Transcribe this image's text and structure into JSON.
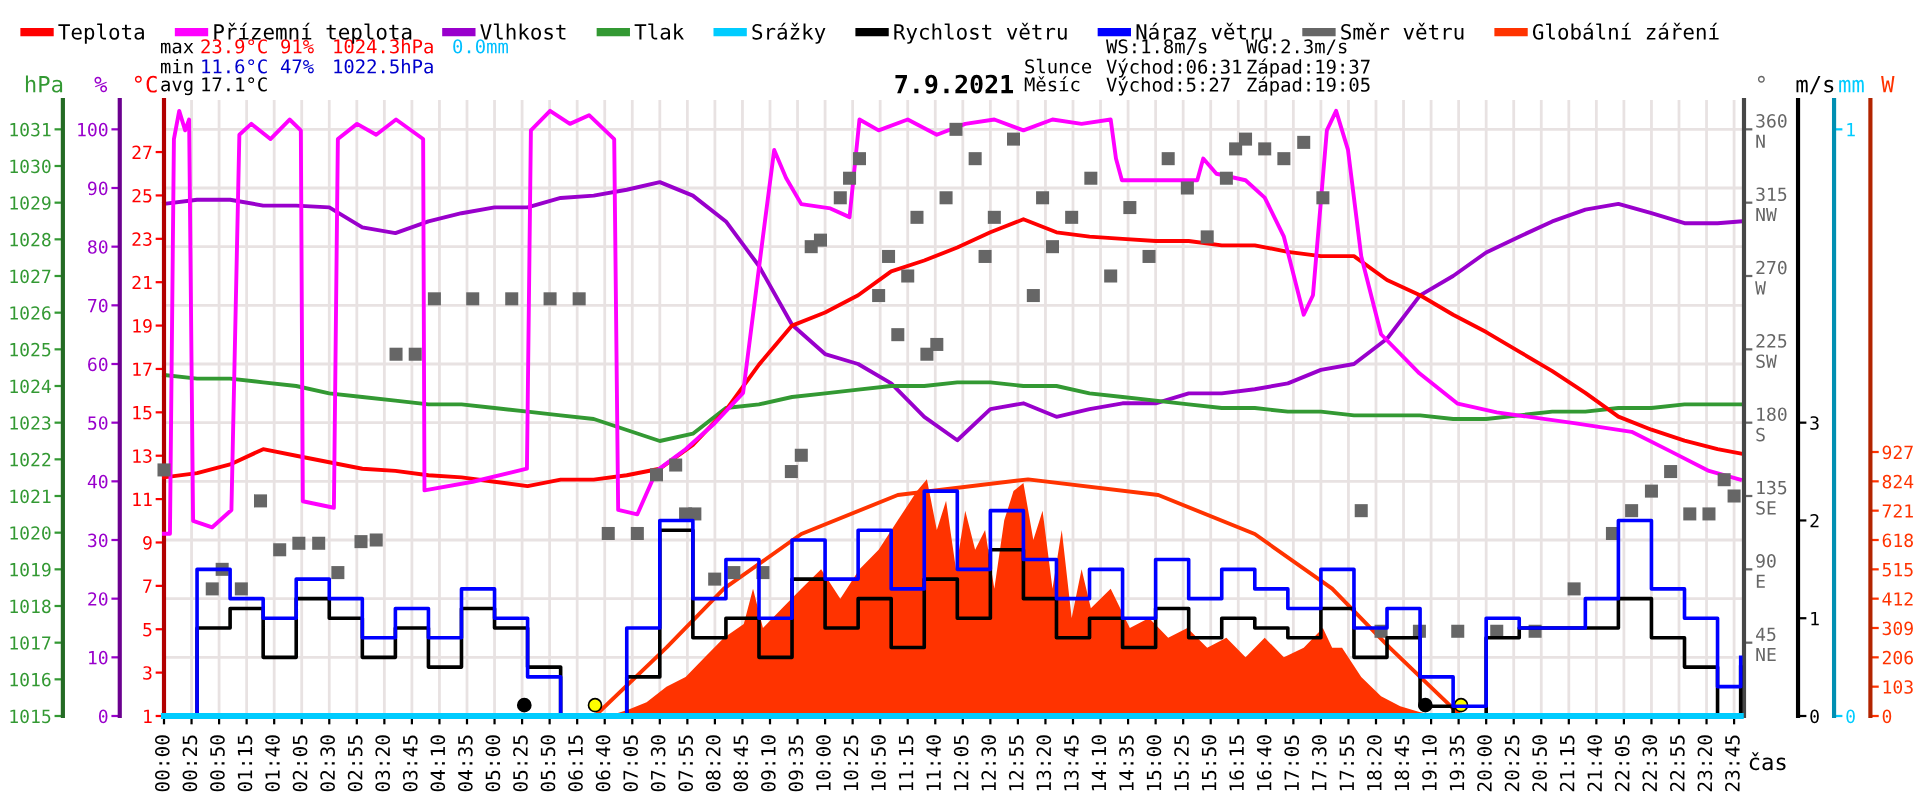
{
  "chart_data": [
    {
      "type": "line",
      "title": "7.9.2021",
      "xlabel": "čas",
      "ylabel": "%",
      "y2label": "hPa",
      "y3label": "°C",
      "legend": "top",
      "grid": true,
      "annotations": [
        "max",
        "23.9°C",
        "91%",
        "1024.3hPa",
        "0.0mm",
        "min",
        "11.6°C",
        "47%",
        "1022.5hPa",
        "avg",
        "17.1°C",
        "WS:1.8m/s",
        "WG:2.3m/s",
        "Slunce",
        "Východ:06:31",
        "Západ:19:37",
        "Měsíc",
        "Východ:5:27",
        "Západ:19:05"
      ],
      "x": [
        0,
        0.5,
        1,
        1.5,
        2,
        2.5,
        3,
        3.5,
        4,
        4.5,
        5,
        5.5,
        6,
        6.5,
        7,
        7.5,
        8,
        8.5,
        9,
        9.5,
        10,
        10.5,
        11,
        11.5,
        12,
        12.5,
        13,
        13.5,
        14,
        14.5,
        15,
        15.5,
        16,
        16.5,
        17,
        17.5,
        18,
        18.5,
        19,
        19.5,
        20,
        20.5,
        21,
        21.5,
        22,
        22.5,
        23,
        23.5,
        23.85
      ],
      "xlim": [
        0,
        23.9
      ],
      "xticks": [
        {
          "value": 0,
          "label": "00:00"
        },
        {
          "value": 0.4167,
          "label": "00:25"
        },
        {
          "value": 0.8333,
          "label": "00:50"
        },
        {
          "value": 1.25,
          "label": "01:15"
        },
        {
          "value": 1.6667,
          "label": "01:40"
        },
        {
          "value": 2.0833,
          "label": "02:05"
        },
        {
          "value": 2.5,
          "label": "02:30"
        },
        {
          "value": 2.9167,
          "label": "02:55"
        },
        {
          "value": 3.3333,
          "label": "03:20"
        },
        {
          "value": 3.75,
          "label": "03:45"
        },
        {
          "value": 4.1667,
          "label": "04:10"
        },
        {
          "value": 4.5833,
          "label": "04:35"
        },
        {
          "value": 5,
          "label": "05:00"
        },
        {
          "value": 5.4167,
          "label": "05:25"
        },
        {
          "value": 5.8333,
          "label": "05:50"
        },
        {
          "value": 6.25,
          "label": "06:15"
        },
        {
          "value": 6.6667,
          "label": "06:40"
        },
        {
          "value": 7.0833,
          "label": "07:05"
        },
        {
          "value": 7.5,
          "label": "07:30"
        },
        {
          "value": 7.9167,
          "label": "07:55"
        },
        {
          "value": 8.3333,
          "label": "08:20"
        },
        {
          "value": 8.75,
          "label": "08:45"
        },
        {
          "value": 9.1667,
          "label": "09:10"
        },
        {
          "value": 9.5833,
          "label": "09:35"
        },
        {
          "value": 10,
          "label": "10:00"
        },
        {
          "value": 10.4167,
          "label": "10:25"
        },
        {
          "value": 10.8333,
          "label": "10:50"
        },
        {
          "value": 11.25,
          "label": "11:15"
        },
        {
          "value": 11.6667,
          "label": "11:40"
        },
        {
          "value": 12.0833,
          "label": "12:05"
        },
        {
          "value": 12.5,
          "label": "12:30"
        },
        {
          "value": 12.9167,
          "label": "12:55"
        },
        {
          "value": 13.3333,
          "label": "13:20"
        },
        {
          "value": 13.75,
          "label": "13:45"
        },
        {
          "value": 14.1667,
          "label": "14:10"
        },
        {
          "value": 14.5833,
          "label": "14:35"
        },
        {
          "value": 15,
          "label": "15:00"
        },
        {
          "value": 15.4167,
          "label": "15:25"
        },
        {
          "value": 15.8333,
          "label": "15:50"
        },
        {
          "value": 16.25,
          "label": "16:15"
        },
        {
          "value": 16.6667,
          "label": "16:40"
        },
        {
          "value": 17.0833,
          "label": "17:05"
        },
        {
          "value": 17.5,
          "label": "17:30"
        },
        {
          "value": 17.9167,
          "label": "17:55"
        },
        {
          "value": 18.3333,
          "label": "18:20"
        },
        {
          "value": 18.75,
          "label": "18:45"
        },
        {
          "value": 19.1667,
          "label": "19:10"
        },
        {
          "value": 19.5833,
          "label": "19:35"
        },
        {
          "value": 20,
          "label": "20:00"
        },
        {
          "value": 20.4167,
          "label": "20:25"
        },
        {
          "value": 20.8333,
          "label": "20:50"
        },
        {
          "value": 21.25,
          "label": "21:15"
        },
        {
          "value": 21.6667,
          "label": "21:40"
        },
        {
          "value": 22.0833,
          "label": "22:05"
        },
        {
          "value": 22.5,
          "label": "22:30"
        },
        {
          "value": 22.9167,
          "label": "22:55"
        },
        {
          "value": 23.3333,
          "label": "23:20"
        },
        {
          "value": 23.75,
          "label": "23:45"
        }
      ],
      "ylim": [
        0,
        105
      ],
      "yticks": [
        0,
        10,
        20,
        30,
        40,
        50,
        60,
        70,
        80,
        90,
        100
      ],
      "y2lim": [
        1015,
        1031.8
      ],
      "y2ticks": [
        1015,
        1016,
        1017,
        1018,
        1019,
        1020,
        1021,
        1022,
        1023,
        1024,
        1025,
        1026,
        1027,
        1028,
        1029,
        1030,
        1031
      ],
      "y3lim": [
        1,
        29.4
      ],
      "y3ticks": [
        1,
        3,
        5,
        7,
        9,
        11,
        13,
        15,
        17,
        19,
        21,
        23,
        25,
        27
      ],
      "series": [
        {
          "name": "Teplota",
          "color": "#ff0000",
          "axis": "y3",
          "values": [
            12.0,
            12.2,
            12.6,
            13.3,
            13.0,
            12.7,
            12.4,
            12.3,
            12.1,
            12.0,
            11.8,
            11.6,
            11.9,
            11.9,
            12.1,
            12.4,
            13.5,
            15.1,
            17.2,
            19.0,
            19.6,
            20.4,
            21.5,
            22.0,
            22.6,
            23.3,
            23.9,
            23.3,
            23.1,
            23.0,
            22.9,
            22.9,
            22.7,
            22.7,
            22.4,
            22.2,
            22.2,
            21.1,
            20.4,
            19.5,
            18.7,
            17.8,
            16.9,
            15.9,
            14.8,
            14.2,
            13.7,
            13.3,
            13.1
          ]
        },
        {
          "name": "Přízemní teplota",
          "color": "#ff00ff",
          "axis": "y3",
          "x": [
            0,
            0.09,
            0.15,
            0.23,
            0.32,
            0.38,
            0.44,
            0.73,
            1.02,
            1.14,
            1.32,
            1.61,
            1.9,
            2.07,
            2.1,
            2.57,
            2.63,
            2.92,
            3.21,
            3.51,
            3.92,
            3.94,
            4.67,
            5.49,
            5.55,
            5.84,
            6.14,
            6.43,
            6.81,
            6.87,
            7.16,
            7.45,
            7.89,
            8.33,
            8.76,
            9.06,
            9.23,
            9.41,
            9.64,
            10.08,
            10.37,
            10.52,
            10.81,
            11.25,
            11.69,
            12.12,
            12.56,
            13.0,
            13.44,
            13.88,
            14.32,
            14.4,
            14.49,
            15.63,
            15.72,
            15.92,
            16.36,
            16.65,
            16.94,
            17.24,
            17.38,
            17.59,
            17.73,
            17.91,
            18.11,
            18.41,
            18.99,
            19.57,
            20.16,
            21.33,
            22.2,
            22.79,
            23.37,
            23.84
          ],
          "values": [
            9.4,
            9.4,
            27.6,
            28.9,
            28.0,
            28.5,
            10.0,
            9.7,
            10.5,
            27.8,
            28.3,
            27.6,
            28.5,
            28.0,
            10.9,
            10.6,
            27.6,
            28.3,
            27.8,
            28.5,
            27.6,
            11.4,
            11.8,
            12.4,
            28.0,
            28.9,
            28.3,
            28.7,
            27.6,
            10.5,
            10.3,
            12.3,
            13.3,
            14.5,
            15.9,
            23.1,
            27.1,
            25.8,
            24.6,
            24.4,
            24.0,
            28.5,
            28.0,
            28.5,
            27.8,
            28.3,
            28.5,
            28.0,
            28.5,
            28.3,
            28.5,
            26.7,
            25.7,
            25.7,
            26.7,
            26.0,
            25.7,
            24.9,
            23.1,
            19.5,
            20.4,
            28.0,
            28.9,
            27.1,
            22.2,
            18.6,
            16.8,
            15.4,
            15.0,
            14.5,
            14.1,
            13.2,
            12.3,
            11.9
          ]
        },
        {
          "name": "Vlhkost",
          "color": "#9900cc",
          "values": [
            87.3,
            88,
            88,
            87,
            87,
            86.7,
            83.3,
            82.3,
            84.3,
            85.7,
            86.7,
            86.7,
            88.3,
            88.7,
            89.7,
            91,
            88.7,
            84.3,
            76.7,
            66.7,
            61.7,
            60,
            56.7,
            51,
            47,
            52.3,
            53.3,
            51,
            52.3,
            53.3,
            53.3,
            55,
            55,
            55.7,
            56.7,
            59,
            60,
            64.3,
            71.7,
            75,
            79,
            81.7,
            84.3,
            86.3,
            87.3,
            85.7,
            84,
            84,
            84.3
          ]
        },
        {
          "name": "Tlak",
          "color": "#339933",
          "axis": "y2",
          "values": [
            1024.3,
            1024.2,
            1024.2,
            1024.1,
            1024.0,
            1023.8,
            1023.7,
            1023.6,
            1023.5,
            1023.5,
            1023.4,
            1023.3,
            1023.2,
            1023.1,
            1022.8,
            1022.5,
            1022.7,
            1023.4,
            1023.5,
            1023.7,
            1023.8,
            1023.9,
            1024.0,
            1024.0,
            1024.1,
            1024.1,
            1024.0,
            1024.0,
            1023.8,
            1023.7,
            1023.6,
            1023.5,
            1023.4,
            1023.4,
            1023.3,
            1023.3,
            1023.2,
            1023.2,
            1023.2,
            1023.1,
            1023.1,
            1023.2,
            1023.3,
            1023.3,
            1023.4,
            1023.4,
            1023.5,
            1023.5,
            1023.5
          ]
        },
        {
          "type": "scatter",
          "marker": "circle",
          "axis": "y3",
          "x": [
            5.45,
            6.52,
            19.08,
            19.62
          ],
          "values": [
            1.5,
            1.5,
            1.5,
            1.5
          ],
          "colors": [
            "#000000",
            "#ffff00",
            "#000000",
            "#ffff00"
          ]
        }
      ]
    },
    {
      "type": "line",
      "ylabel": "°",
      "y2label": "m/s",
      "y3label": "mm",
      "legend": "top",
      "tick_labels": "y",
      "x": [
        0,
        0.5,
        1,
        1.5,
        2,
        2.5,
        3,
        3.5,
        4,
        4.5,
        5,
        5.5,
        6,
        6.5,
        7,
        7.5,
        8,
        8.5,
        9,
        9.5,
        10,
        10.5,
        11,
        11.5,
        12,
        12.5,
        13,
        13.5,
        14,
        14.5,
        15,
        15.5,
        16,
        16.5,
        17,
        17.5,
        18,
        18.5,
        19,
        19.5,
        20,
        20.5,
        21,
        21.5,
        22,
        22.5,
        23,
        23.5,
        23.85
      ],
      "xlim": [
        0,
        23.9
      ],
      "ylim": [
        0,
        378
      ],
      "yticks": [
        {
          "value": 45,
          "label": "45\nNE"
        },
        {
          "value": 90,
          "label": "90\nE"
        },
        {
          "value": 135,
          "label": "135\nSE"
        },
        {
          "value": 180,
          "label": "180\nS"
        },
        {
          "value": 225,
          "label": "225\nSW"
        },
        {
          "value": 270,
          "label": "270\nW"
        },
        {
          "value": 315,
          "label": "315\nNW"
        },
        {
          "value": 360,
          "label": "360\nN"
        }
      ],
      "y2lim": [
        0,
        6.3
      ],
      "y2ticks": [
        0,
        1,
        2,
        3
      ],
      "y3lim": [
        0,
        1.05
      ],
      "y3ticks": [
        0,
        1
      ],
      "series": [
        {
          "name": "Srážky",
          "color": "#00ccff",
          "axis": "y3",
          "values": [
            0,
            0,
            0,
            0,
            0,
            0,
            0,
            0,
            0,
            0,
            0,
            0,
            0,
            0,
            0,
            0,
            0,
            0,
            0,
            0,
            0,
            0,
            0,
            0,
            0,
            0,
            0,
            0,
            0,
            0,
            0,
            0,
            0,
            0,
            0,
            0,
            0,
            0,
            0,
            0,
            0,
            0,
            0,
            0,
            0,
            0,
            0,
            0,
            0
          ]
        },
        {
          "name": "Rychlost větru",
          "color": "#000000",
          "axis": "y2",
          "type": "step",
          "values": [
            0,
            0.9,
            1.1,
            0.6,
            1.2,
            1.0,
            0.6,
            0.9,
            0.5,
            1.1,
            0.9,
            0.5,
            0,
            0,
            0.4,
            1.9,
            0.8,
            1.0,
            0.6,
            1.4,
            0.9,
            1.2,
            0.7,
            1.4,
            1.0,
            1.7,
            1.2,
            0.8,
            1.0,
            0.7,
            1.1,
            0.8,
            1.0,
            0.9,
            0.8,
            1.1,
            0.6,
            0.8,
            0.1,
            0,
            0.8,
            0.9,
            0.9,
            0.9,
            1.2,
            0.8,
            0.5,
            0,
            0.5
          ]
        },
        {
          "name": "Náraz větru",
          "color": "#0000ff",
          "axis": "y2",
          "type": "step",
          "values": [
            0,
            1.5,
            1.2,
            1.0,
            1.4,
            1.2,
            0.8,
            1.1,
            0.8,
            1.3,
            1.0,
            0.4,
            0,
            0,
            0.9,
            2.0,
            1.2,
            1.6,
            1.0,
            1.8,
            1.4,
            1.9,
            1.3,
            2.3,
            1.5,
            2.1,
            1.6,
            1.2,
            1.5,
            1.0,
            1.6,
            1.2,
            1.5,
            1.3,
            1.1,
            1.5,
            0.9,
            1.1,
            0.4,
            0.1,
            1.0,
            0.9,
            0.9,
            1.2,
            2.0,
            1.3,
            1.0,
            0.3,
            0.6
          ]
        },
        {
          "name": "Směr větru",
          "color": "#666666",
          "type": "scatter",
          "marker": "square",
          "x": [
            0,
            0.73,
            0.88,
            1.17,
            1.46,
            1.75,
            2.04,
            2.34,
            2.63,
            2.98,
            3.21,
            3.51,
            3.8,
            4.09,
            4.67,
            5.26,
            5.84,
            6.28,
            6.72,
            7.16,
            7.45,
            7.74,
            7.89,
            8.03,
            8.33,
            8.62,
            9.06,
            9.49,
            9.64,
            9.79,
            9.93,
            10.23,
            10.37,
            10.52,
            10.81,
            10.96,
            11.1,
            11.25,
            11.39,
            11.54,
            11.69,
            11.83,
            11.98,
            12.27,
            12.42,
            12.56,
            12.85,
            13.15,
            13.29,
            13.44,
            13.73,
            14.02,
            14.32,
            14.61,
            14.9,
            15.19,
            15.48,
            15.78,
            16.07,
            16.21,
            16.36,
            16.65,
            16.94,
            17.24,
            17.53,
            18.11,
            18.41,
            18.99,
            19.57,
            20.16,
            20.74,
            21.33,
            21.91,
            22.2,
            22.5,
            22.79,
            23.08,
            23.37,
            23.6,
            23.75
          ],
          "values": [
            151,
            78,
            90,
            78,
            132,
            102,
            106,
            106,
            88,
            107,
            108,
            222,
            222,
            256,
            256,
            256,
            256,
            256,
            112,
            112,
            148,
            154,
            124,
            124,
            84,
            88,
            88,
            150,
            160,
            288,
            292,
            318,
            330,
            342,
            258,
            282,
            234,
            270,
            306,
            222,
            228,
            318,
            360,
            342,
            282,
            306,
            354,
            258,
            318,
            288,
            306,
            330,
            270,
            312,
            282,
            342,
            324,
            294,
            330,
            348,
            354,
            348,
            342,
            352,
            318,
            126,
            52,
            52,
            52,
            52,
            52,
            78,
            112,
            126,
            138,
            150,
            124,
            124,
            145,
            135
          ]
        }
      ]
    },
    {
      "type": "area",
      "ylabel": "W",
      "legend": "top",
      "tick_labels": "y",
      "xlim": [
        0,
        23.9
      ],
      "ylim": [
        0,
        2163
      ],
      "yticks": [
        0,
        103,
        206,
        309,
        412,
        515,
        618,
        721,
        824,
        927
      ],
      "series": [
        {
          "name": "Globální záření",
          "color": "#ff3300",
          "x": [
            6.72,
            7.01,
            7.3,
            7.6,
            7.89,
            8.18,
            8.47,
            8.77,
            8.91,
            9.06,
            9.35,
            9.64,
            9.94,
            10.23,
            10.52,
            10.81,
            11.1,
            11.39,
            11.54,
            11.69,
            11.83,
            11.98,
            12.12,
            12.27,
            12.42,
            12.56,
            12.71,
            12.85,
            13.0,
            13.15,
            13.29,
            13.44,
            13.58,
            13.73,
            13.88,
            14.02,
            14.32,
            14.61,
            14.9,
            15.19,
            15.48,
            15.78,
            16.07,
            16.36,
            16.65,
            16.94,
            17.24,
            17.53,
            17.67,
            17.82,
            18.11,
            18.41,
            18.7,
            18.99,
            19.28
          ],
          "values": [
            0,
            21,
            48,
            103,
            137,
            206,
            275,
            323,
            447,
            309,
            378,
            447,
            515,
            412,
            515,
            584,
            687,
            790,
            831,
            653,
            756,
            515,
            721,
            584,
            653,
            447,
            687,
            790,
            818,
            618,
            721,
            447,
            653,
            344,
            515,
            378,
            447,
            309,
            344,
            275,
            309,
            240,
            275,
            206,
            275,
            206,
            240,
            309,
            240,
            240,
            137,
            69,
            34,
            14,
            0
          ]
        },
        {
          "type": "line",
          "color": "#ff3300",
          "x": [
            6.52,
            7.6,
            8.47,
            9.64,
            11.1,
            13.07,
            15.04,
            16.5,
            17.67,
            18.54,
            19.62
          ],
          "values": [
            0,
            240,
            447,
            639,
            776,
            831,
            776,
            639,
            447,
            240,
            0
          ]
        }
      ]
    }
  ]
}
